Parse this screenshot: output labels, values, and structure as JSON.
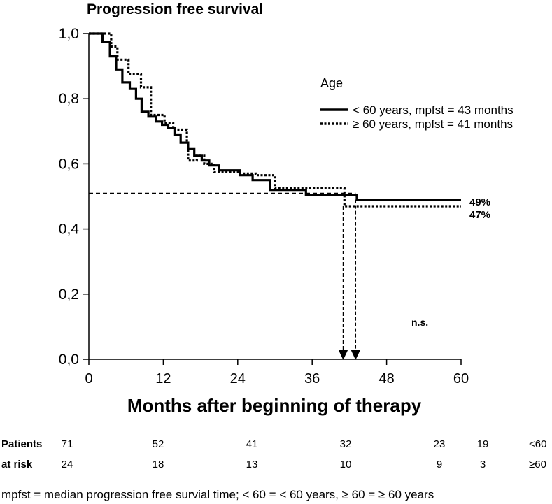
{
  "chart_data": {
    "type": "line",
    "title": "Progression free survival",
    "xlabel": "Months after beginning of therapy",
    "ylabel": "",
    "xlim": [
      0,
      60
    ],
    "ylim": [
      0,
      1
    ],
    "xticks": [
      "0",
      "12",
      "24",
      "36",
      "48",
      "60"
    ],
    "yticks": [
      "0,0",
      "0,2",
      "0,4",
      "0,6",
      "0,8",
      "1,0"
    ],
    "legend": {
      "title": "Age",
      "position": "top-right",
      "entries": [
        "< 60 years, mpfst = 43 months",
        "≥ 60 years, mpfst = 41 months"
      ]
    },
    "series": [
      {
        "name": "< 60 years, mpfst = 43 months",
        "line_style": "solid",
        "points": [
          [
            0,
            1.0
          ],
          [
            2.2,
            1.0
          ],
          [
            2.2,
            0.975
          ],
          [
            3.4,
            0.975
          ],
          [
            3.4,
            0.93
          ],
          [
            4.4,
            0.93
          ],
          [
            4.4,
            0.89
          ],
          [
            5.4,
            0.89
          ],
          [
            5.4,
            0.85
          ],
          [
            6.6,
            0.85
          ],
          [
            6.6,
            0.83
          ],
          [
            7.6,
            0.83
          ],
          [
            7.6,
            0.8
          ],
          [
            8.5,
            0.8
          ],
          [
            8.5,
            0.76
          ],
          [
            9.6,
            0.76
          ],
          [
            9.6,
            0.745
          ],
          [
            10.8,
            0.745
          ],
          [
            10.8,
            0.73
          ],
          [
            11.8,
            0.73
          ],
          [
            11.8,
            0.72
          ],
          [
            12.8,
            0.72
          ],
          [
            12.8,
            0.71
          ],
          [
            13.8,
            0.71
          ],
          [
            13.8,
            0.69
          ],
          [
            14.8,
            0.69
          ],
          [
            14.8,
            0.665
          ],
          [
            16.0,
            0.665
          ],
          [
            16.0,
            0.645
          ],
          [
            17.0,
            0.645
          ],
          [
            17.0,
            0.625
          ],
          [
            18.2,
            0.625
          ],
          [
            18.2,
            0.61
          ],
          [
            19.4,
            0.61
          ],
          [
            19.4,
            0.595
          ],
          [
            21.0,
            0.595
          ],
          [
            21.0,
            0.58
          ],
          [
            24.4,
            0.58
          ],
          [
            24.4,
            0.565
          ],
          [
            26.4,
            0.565
          ],
          [
            26.4,
            0.55
          ],
          [
            29.2,
            0.55
          ],
          [
            29.2,
            0.52
          ],
          [
            35.0,
            0.52
          ],
          [
            35.0,
            0.505
          ],
          [
            43.2,
            0.505
          ],
          [
            43.2,
            0.49
          ],
          [
            60,
            0.49
          ]
        ]
      },
      {
        "name": "≥ 60 years, mpfst = 41 months",
        "line_style": "dotted",
        "points": [
          [
            0,
            1.0
          ],
          [
            3.6,
            1.0
          ],
          [
            3.6,
            0.96
          ],
          [
            4.6,
            0.96
          ],
          [
            4.6,
            0.92
          ],
          [
            6.4,
            0.92
          ],
          [
            6.4,
            0.875
          ],
          [
            8.4,
            0.875
          ],
          [
            8.4,
            0.835
          ],
          [
            10.0,
            0.835
          ],
          [
            10.0,
            0.75
          ],
          [
            12.2,
            0.75
          ],
          [
            12.2,
            0.725
          ],
          [
            13.6,
            0.725
          ],
          [
            13.6,
            0.705
          ],
          [
            15.8,
            0.705
          ],
          [
            15.8,
            0.665
          ],
          [
            16.0,
            0.665
          ],
          [
            16.0,
            0.61
          ],
          [
            17.4,
            0.61
          ],
          [
            17.4,
            0.625
          ],
          [
            18.6,
            0.625
          ],
          [
            18.6,
            0.6
          ],
          [
            20.2,
            0.6
          ],
          [
            20.2,
            0.575
          ],
          [
            24.4,
            0.575
          ],
          [
            24.4,
            0.57
          ],
          [
            27.0,
            0.57
          ],
          [
            27.0,
            0.565
          ],
          [
            30.0,
            0.565
          ],
          [
            30.0,
            0.525
          ],
          [
            38.0,
            0.525
          ],
          [
            38.0,
            0.525
          ],
          [
            41.2,
            0.525
          ],
          [
            41.2,
            0.47
          ],
          [
            60,
            0.47
          ]
        ]
      }
    ],
    "annotations": {
      "median_line_y": 0.51,
      "median_arrows_x": [
        41,
        43
      ],
      "end_labels": [
        {
          "text": "49%",
          "y": 0.49
        },
        {
          "text": "47%",
          "y": 0.47
        }
      ],
      "significance": "n.s."
    }
  },
  "risk_table": {
    "label_line1": "Patients",
    "label_line2": "at risk",
    "rows": [
      {
        "group": "<60",
        "values": [
          "71",
          "52",
          "41",
          "32",
          "23",
          "19"
        ]
      },
      {
        "group": "≥60",
        "values": [
          "24",
          "18",
          "13",
          "10",
          "9",
          "3"
        ]
      }
    ]
  },
  "footnote": "mpfst = median progression free survial time; < 60 = < 60 years, ≥ 60 = ≥ 60 years"
}
